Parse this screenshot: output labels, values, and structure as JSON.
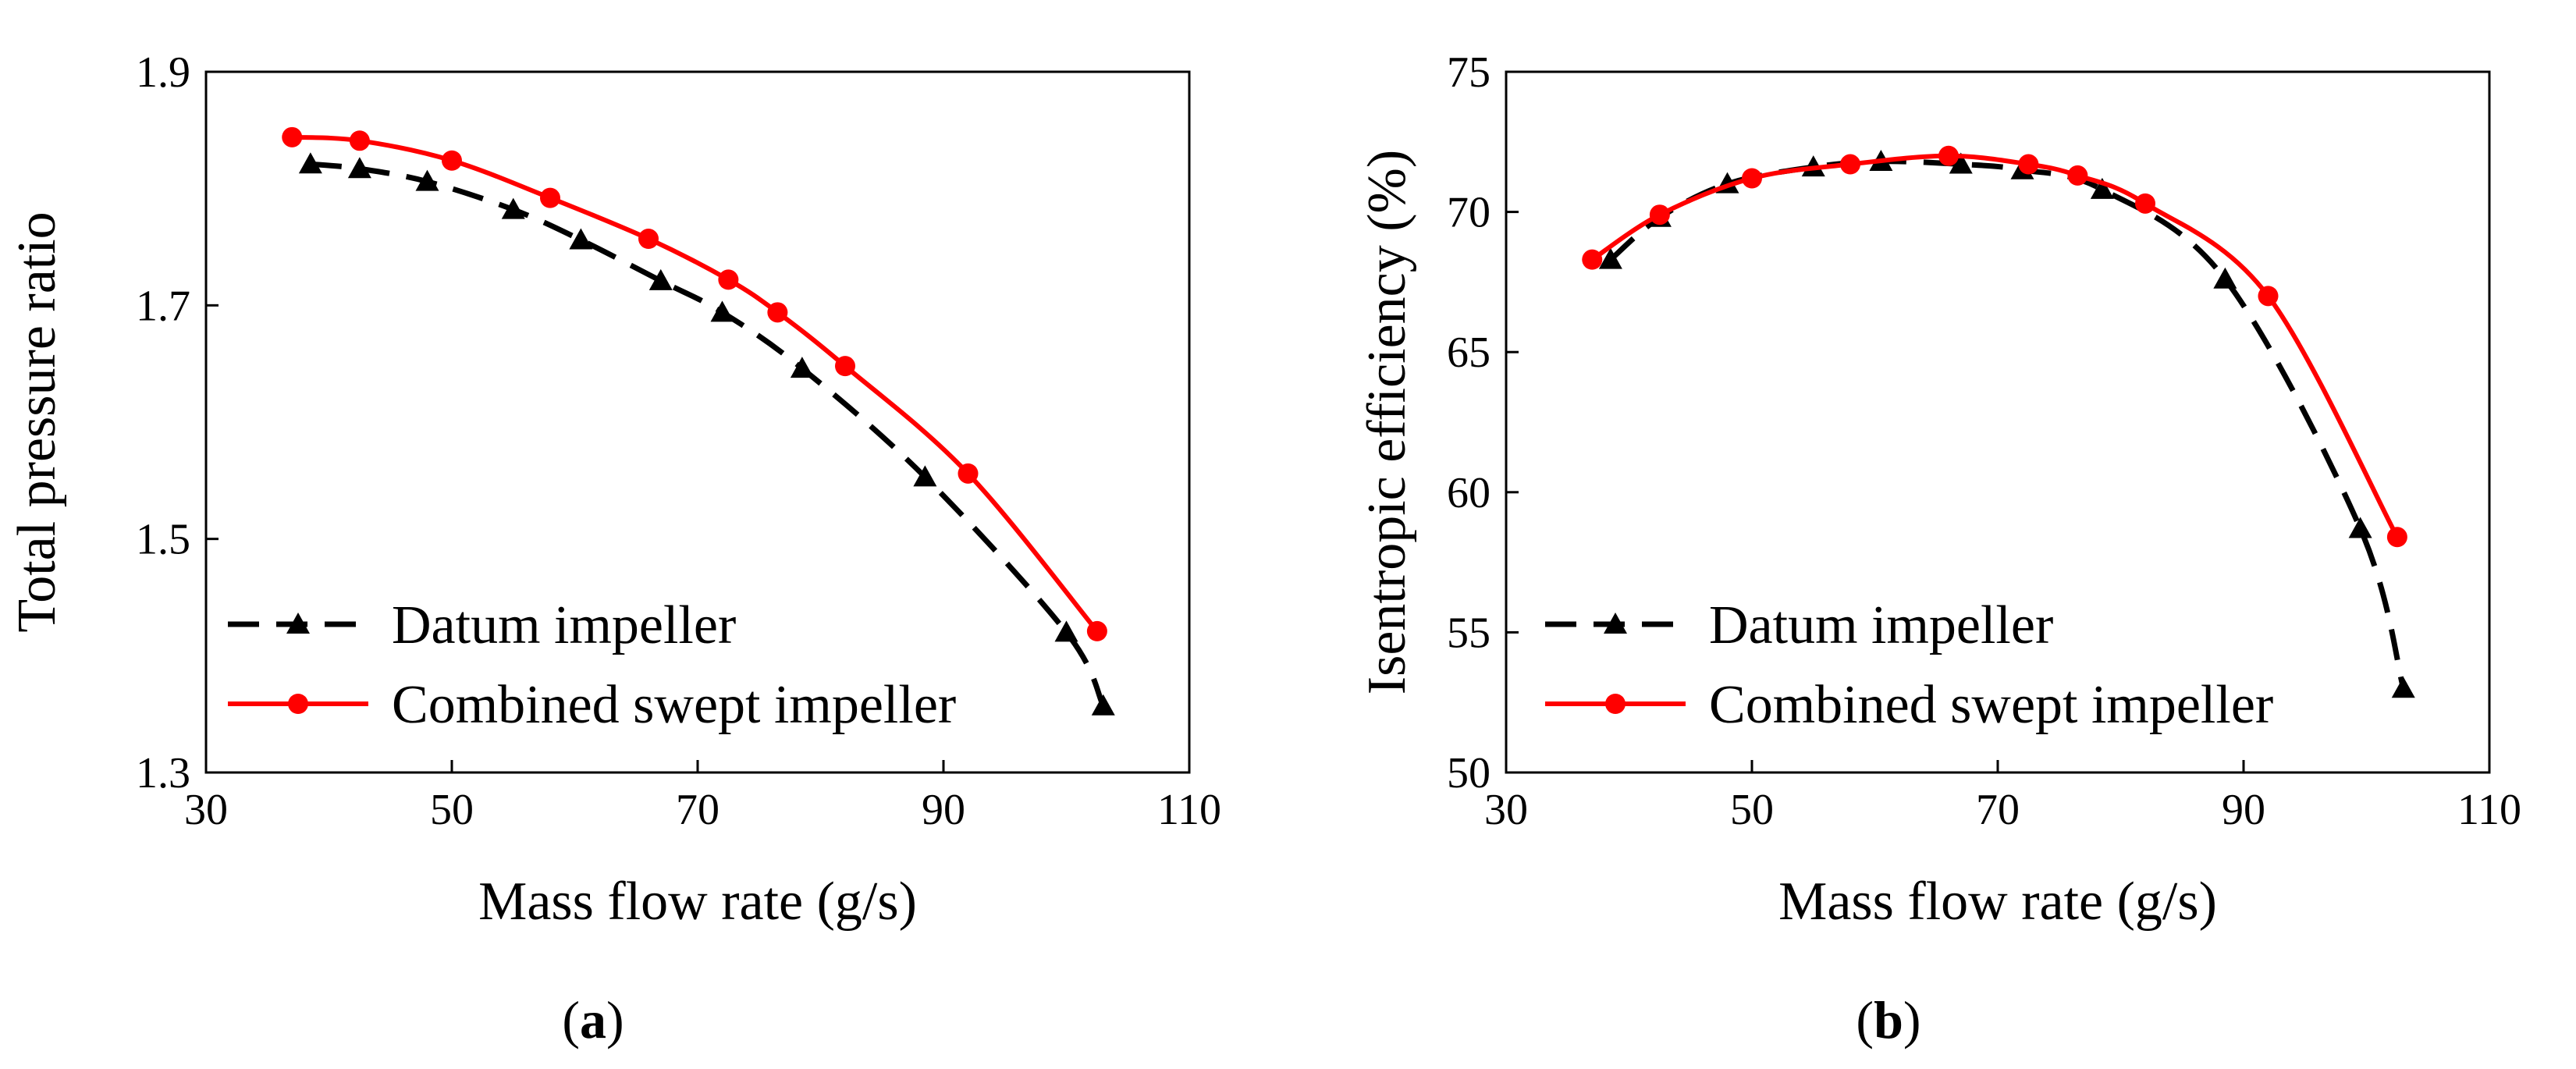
{
  "colors": {
    "datum": "#000000",
    "combined": "#ff0000"
  },
  "chart_data": [
    {
      "type": "line",
      "panel_label": {
        "open": "(",
        "letter": "a",
        "close": ")"
      },
      "xlabel": "Mass flow rate (g/s)",
      "ylabel": "Total pressure ratio",
      "xlim": [
        30,
        110
      ],
      "ylim": [
        1.3,
        1.9
      ],
      "xticks": [
        30,
        50,
        70,
        90,
        110
      ],
      "yticks": [
        1.3,
        1.5,
        1.7,
        1.9
      ],
      "yticklabels": [
        "1.3",
        "1.5",
        "1.7",
        "1.9"
      ],
      "grid": false,
      "legend_position": "lower-left",
      "series": [
        {
          "name": "Datum impeller",
          "style": "dashed",
          "marker": "triangle",
          "color": "#000000",
          "x": [
            38.5,
            42.5,
            48,
            55,
            60.5,
            67,
            72,
            78.5,
            88.5,
            100,
            103
          ],
          "y": [
            1.821,
            1.817,
            1.806,
            1.782,
            1.756,
            1.721,
            1.694,
            1.646,
            1.553,
            1.42,
            1.357
          ]
        },
        {
          "name": "Combined swept impeller",
          "style": "solid",
          "marker": "circle",
          "color": "#ff0000",
          "x": [
            37,
            42.5,
            50,
            58,
            66,
            72.5,
            76.5,
            82,
            92,
            102.5
          ],
          "y": [
            1.844,
            1.841,
            1.824,
            1.792,
            1.757,
            1.722,
            1.694,
            1.648,
            1.556,
            1.421
          ]
        }
      ]
    },
    {
      "type": "line",
      "panel_label": {
        "open": "(",
        "letter": "b",
        "close": ")"
      },
      "xlabel": "Mass flow rate (g/s)",
      "ylabel": "Isentropic efficiency (%)",
      "xlim": [
        30,
        110
      ],
      "ylim": [
        50,
        75
      ],
      "xticks": [
        30,
        50,
        70,
        90,
        110
      ],
      "yticks": [
        50,
        55,
        60,
        65,
        70,
        75
      ],
      "yticklabels": [
        "50",
        "55",
        "60",
        "65",
        "70",
        "75"
      ],
      "grid": false,
      "legend_position": "lower-left",
      "series": [
        {
          "name": "Datum impeller",
          "style": "dashed",
          "marker": "triangle",
          "color": "#000000",
          "x": [
            38.5,
            42.5,
            48,
            55,
            60.5,
            67,
            72,
            78.5,
            88.5,
            99.5,
            103
          ],
          "y": [
            68.3,
            69.8,
            71.0,
            71.6,
            71.8,
            71.7,
            71.5,
            70.8,
            67.6,
            58.7,
            53.0
          ]
        },
        {
          "name": "Combined swept impeller",
          "style": "solid",
          "marker": "circle",
          "color": "#ff0000",
          "x": [
            37,
            42.5,
            50,
            58,
            66,
            72.5,
            76.5,
            82,
            92,
            102.5
          ],
          "y": [
            68.3,
            69.9,
            71.2,
            71.7,
            72.0,
            71.7,
            71.3,
            70.3,
            67.0,
            58.4
          ]
        }
      ]
    }
  ]
}
